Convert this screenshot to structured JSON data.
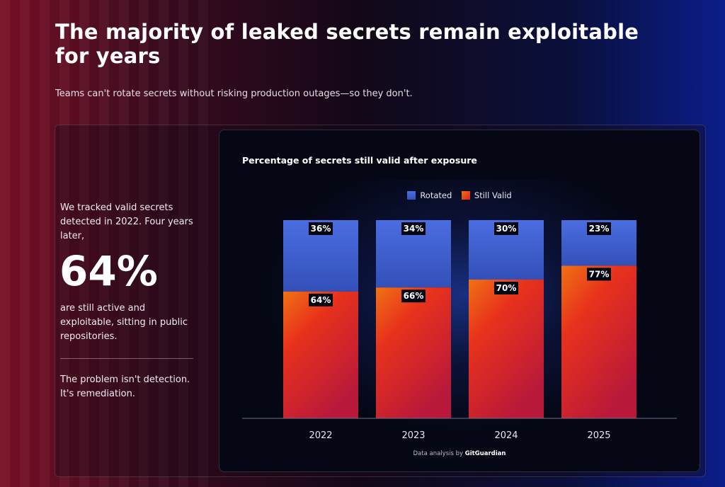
{
  "header": {
    "title": "The majority of leaked secrets remain exploitable for years",
    "subtitle": "Teams can't rotate secrets without risking production outages—so they don't."
  },
  "sidebar": {
    "intro": "We tracked valid secrets detected in 2022. Four years later,",
    "highlight": "64%",
    "after": "are still active and exploitable, sitting in public repositories.",
    "conclusion": "The problem isn't detection. It's remediation."
  },
  "chart_data": {
    "type": "bar",
    "stacked": true,
    "title": "Percentage of secrets still valid after exposure",
    "categories": [
      "2022",
      "2023",
      "2024",
      "2025"
    ],
    "series": [
      {
        "name": "Still Valid",
        "values": [
          64,
          66,
          70,
          77
        ],
        "labels": [
          "64%",
          "66%",
          "70%",
          "77%"
        ],
        "color": "#e8281f"
      },
      {
        "name": "Rotated",
        "values": [
          36,
          34,
          30,
          23
        ],
        "labels": [
          "36%",
          "34%",
          "30%",
          "23%"
        ],
        "color": "#3c5fc9"
      }
    ],
    "ylim": [
      0,
      100
    ],
    "grid": false,
    "legend_position": "top-center"
  },
  "credit": {
    "prefix": "Data analysis by",
    "brand": "GitGuardian"
  },
  "colors": {
    "rotated": "#3c5fc9",
    "still_valid": "#e8281f",
    "orange": "#f07014",
    "background_left": "#7a1025",
    "background_right": "#0b1d8a"
  }
}
